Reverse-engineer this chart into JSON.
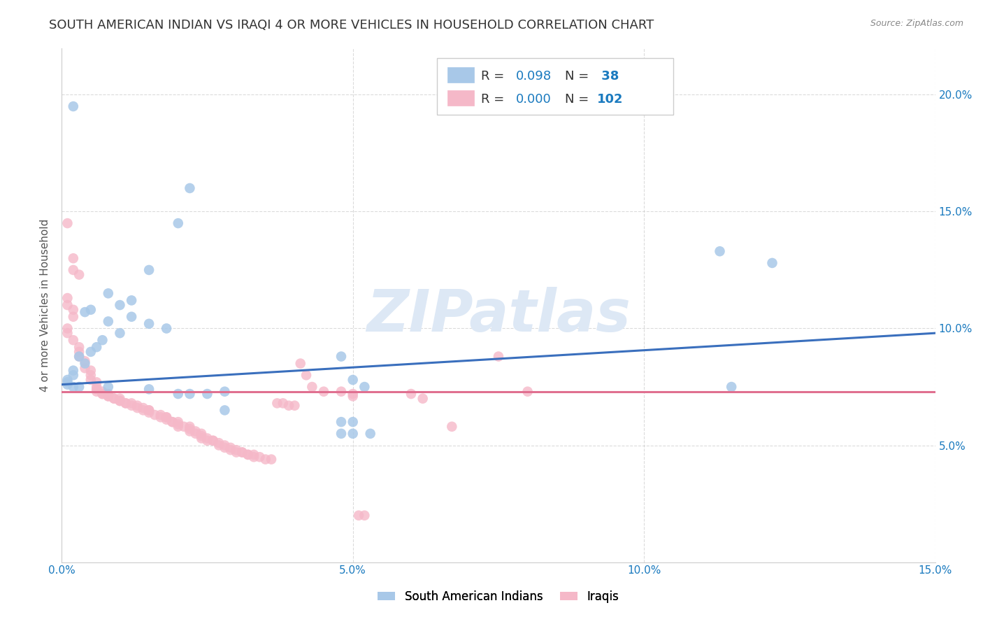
{
  "title": "SOUTH AMERICAN INDIAN VS IRAQI 4 OR MORE VEHICLES IN HOUSEHOLD CORRELATION CHART",
  "source": "Source: ZipAtlas.com",
  "ylabel": "4 or more Vehicles in Household",
  "xlim": [
    0.0,
    0.15
  ],
  "ylim": [
    0.0,
    0.22
  ],
  "xticks": [
    0.0,
    0.05,
    0.1,
    0.15
  ],
  "yticks": [
    0.05,
    0.1,
    0.15,
    0.2
  ],
  "xtick_labels": [
    "0.0%",
    "5.0%",
    "10.0%",
    "15.0%"
  ],
  "ytick_labels": [
    "5.0%",
    "10.0%",
    "15.0%",
    "20.0%"
  ],
  "blue_dot_color": "#a8c8e8",
  "pink_dot_color": "#f5b8c8",
  "blue_line_color": "#3a6fbd",
  "pink_line_color": "#e07090",
  "watermark": "ZIPatlas",
  "watermark_color": "#dde8f5",
  "R_color": "#1a7abf",
  "N_color": "#1a7abf",
  "blue_scatter": [
    [
      0.002,
      0.195
    ],
    [
      0.022,
      0.16
    ],
    [
      0.02,
      0.145
    ],
    [
      0.015,
      0.125
    ],
    [
      0.008,
      0.115
    ],
    [
      0.012,
      0.112
    ],
    [
      0.01,
      0.11
    ],
    [
      0.005,
      0.108
    ],
    [
      0.004,
      0.107
    ],
    [
      0.012,
      0.105
    ],
    [
      0.008,
      0.103
    ],
    [
      0.015,
      0.102
    ],
    [
      0.018,
      0.1
    ],
    [
      0.01,
      0.098
    ],
    [
      0.007,
      0.095
    ],
    [
      0.006,
      0.092
    ],
    [
      0.005,
      0.09
    ],
    [
      0.003,
      0.088
    ],
    [
      0.004,
      0.085
    ],
    [
      0.002,
      0.082
    ],
    [
      0.002,
      0.08
    ],
    [
      0.001,
      0.078
    ],
    [
      0.001,
      0.077
    ],
    [
      0.001,
      0.076
    ],
    [
      0.002,
      0.075
    ],
    [
      0.003,
      0.075
    ],
    [
      0.008,
      0.075
    ],
    [
      0.015,
      0.074
    ],
    [
      0.02,
      0.072
    ],
    [
      0.022,
      0.072
    ],
    [
      0.025,
      0.072
    ],
    [
      0.028,
      0.073
    ],
    [
      0.028,
      0.065
    ],
    [
      0.048,
      0.088
    ],
    [
      0.05,
      0.078
    ],
    [
      0.048,
      0.055
    ],
    [
      0.05,
      0.055
    ],
    [
      0.053,
      0.055
    ],
    [
      0.05,
      0.06
    ],
    [
      0.048,
      0.06
    ],
    [
      0.052,
      0.075
    ],
    [
      0.113,
      0.133
    ],
    [
      0.122,
      0.128
    ],
    [
      0.115,
      0.075
    ]
  ],
  "pink_scatter": [
    [
      0.001,
      0.145
    ],
    [
      0.002,
      0.13
    ],
    [
      0.002,
      0.125
    ],
    [
      0.003,
      0.123
    ],
    [
      0.001,
      0.113
    ],
    [
      0.001,
      0.11
    ],
    [
      0.002,
      0.108
    ],
    [
      0.002,
      0.105
    ],
    [
      0.001,
      0.1
    ],
    [
      0.001,
      0.098
    ],
    [
      0.002,
      0.095
    ],
    [
      0.003,
      0.092
    ],
    [
      0.003,
      0.09
    ],
    [
      0.003,
      0.088
    ],
    [
      0.004,
      0.086
    ],
    [
      0.004,
      0.083
    ],
    [
      0.005,
      0.082
    ],
    [
      0.005,
      0.08
    ],
    [
      0.005,
      0.078
    ],
    [
      0.006,
      0.077
    ],
    [
      0.006,
      0.075
    ],
    [
      0.006,
      0.074
    ],
    [
      0.006,
      0.073
    ],
    [
      0.007,
      0.073
    ],
    [
      0.007,
      0.072
    ],
    [
      0.007,
      0.072
    ],
    [
      0.008,
      0.072
    ],
    [
      0.008,
      0.071
    ],
    [
      0.008,
      0.071
    ],
    [
      0.009,
      0.07
    ],
    [
      0.009,
      0.07
    ],
    [
      0.01,
      0.07
    ],
    [
      0.01,
      0.069
    ],
    [
      0.01,
      0.069
    ],
    [
      0.011,
      0.068
    ],
    [
      0.011,
      0.068
    ],
    [
      0.012,
      0.068
    ],
    [
      0.012,
      0.067
    ],
    [
      0.013,
      0.067
    ],
    [
      0.013,
      0.066
    ],
    [
      0.014,
      0.066
    ],
    [
      0.014,
      0.065
    ],
    [
      0.015,
      0.065
    ],
    [
      0.015,
      0.065
    ],
    [
      0.015,
      0.064
    ],
    [
      0.016,
      0.063
    ],
    [
      0.017,
      0.063
    ],
    [
      0.017,
      0.062
    ],
    [
      0.018,
      0.062
    ],
    [
      0.018,
      0.062
    ],
    [
      0.018,
      0.061
    ],
    [
      0.019,
      0.06
    ],
    [
      0.019,
      0.06
    ],
    [
      0.02,
      0.06
    ],
    [
      0.02,
      0.059
    ],
    [
      0.02,
      0.058
    ],
    [
      0.021,
      0.058
    ],
    [
      0.022,
      0.058
    ],
    [
      0.022,
      0.057
    ],
    [
      0.022,
      0.056
    ],
    [
      0.023,
      0.056
    ],
    [
      0.023,
      0.055
    ],
    [
      0.024,
      0.055
    ],
    [
      0.024,
      0.054
    ],
    [
      0.024,
      0.053
    ],
    [
      0.025,
      0.053
    ],
    [
      0.025,
      0.052
    ],
    [
      0.026,
      0.052
    ],
    [
      0.026,
      0.052
    ],
    [
      0.027,
      0.051
    ],
    [
      0.027,
      0.05
    ],
    [
      0.028,
      0.05
    ],
    [
      0.028,
      0.049
    ],
    [
      0.029,
      0.049
    ],
    [
      0.029,
      0.048
    ],
    [
      0.03,
      0.048
    ],
    [
      0.03,
      0.047
    ],
    [
      0.031,
      0.047
    ],
    [
      0.031,
      0.047
    ],
    [
      0.032,
      0.046
    ],
    [
      0.032,
      0.046
    ],
    [
      0.033,
      0.046
    ],
    [
      0.033,
      0.045
    ],
    [
      0.034,
      0.045
    ],
    [
      0.035,
      0.044
    ],
    [
      0.036,
      0.044
    ],
    [
      0.037,
      0.068
    ],
    [
      0.038,
      0.068
    ],
    [
      0.039,
      0.067
    ],
    [
      0.04,
      0.067
    ],
    [
      0.041,
      0.085
    ],
    [
      0.042,
      0.08
    ],
    [
      0.043,
      0.075
    ],
    [
      0.045,
      0.073
    ],
    [
      0.048,
      0.073
    ],
    [
      0.05,
      0.072
    ],
    [
      0.05,
      0.071
    ],
    [
      0.051,
      0.02
    ],
    [
      0.052,
      0.02
    ],
    [
      0.06,
      0.072
    ],
    [
      0.062,
      0.07
    ],
    [
      0.067,
      0.058
    ],
    [
      0.075,
      0.088
    ],
    [
      0.08,
      0.073
    ]
  ],
  "blue_line_x": [
    0.0,
    0.15
  ],
  "blue_line_y": [
    0.076,
    0.098
  ],
  "pink_line_x": [
    0.0,
    0.15
  ],
  "pink_line_y": [
    0.073,
    0.073
  ],
  "background_color": "#ffffff",
  "grid_color": "#cccccc",
  "title_fontsize": 13,
  "axis_label_fontsize": 11,
  "tick_fontsize": 11,
  "legend_fontsize": 13
}
